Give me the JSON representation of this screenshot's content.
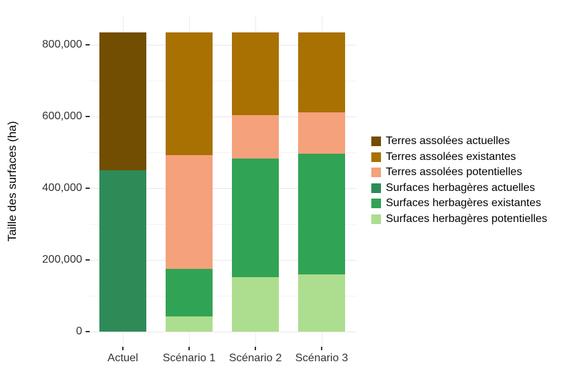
{
  "figure": {
    "background": "#FFFFFF",
    "panel_background": "#FFFFFF",
    "grid_color": "#E8E8E8"
  },
  "chart_data": {
    "type": "bar",
    "stacked": true,
    "title": "",
    "xlabel": "",
    "ylabel": "Taille des surfaces (ha)",
    "categories": [
      "Actuel",
      "Scénario 1",
      "Scénario 2",
      "Scénario 3"
    ],
    "series": [
      {
        "name": "Surfaces herbagères potentielles",
        "color": "#ADDD8E",
        "values": [
          0,
          42000,
          152000,
          160000
        ]
      },
      {
        "name": "Surfaces herbagères existantes",
        "color": "#31A354",
        "values": [
          0,
          134000,
          331000,
          337000
        ]
      },
      {
        "name": "Surfaces herbagères actuelles",
        "color": "#2E8B57",
        "values": [
          451000,
          0,
          0,
          0
        ]
      },
      {
        "name": "Terres assolées potentielles",
        "color": "#F4A17C",
        "values": [
          0,
          317000,
          121000,
          114000
        ]
      },
      {
        "name": "Terres assolées existantes",
        "color": "#A97102",
        "values": [
          0,
          342000,
          231000,
          224000
        ]
      },
      {
        "name": "Terres assolées actuelles",
        "color": "#724E02",
        "values": [
          384000,
          0,
          0,
          0
        ]
      }
    ],
    "stack_total": 835000,
    "legend": {
      "position": "right",
      "entries": [
        {
          "label": "Terres assolées actuelles",
          "color": "#724E02"
        },
        {
          "label": "Terres assolées existantes",
          "color": "#A97102"
        },
        {
          "label": "Terres assolées potentielles",
          "color": "#F4A17C"
        },
        {
          "label": "Surfaces herbagères actuelles",
          "color": "#2E8B57"
        },
        {
          "label": "Surfaces herbagères existantes",
          "color": "#31A354"
        },
        {
          "label": "Surfaces herbagères potentielles",
          "color": "#ADDD8E"
        }
      ]
    },
    "y_axis": {
      "ticks": [
        0,
        200000,
        400000,
        600000,
        800000
      ],
      "tick_labels": [
        "0",
        "200,000",
        "400,000",
        "600,000",
        "800,000"
      ],
      "minor_ticks": [
        100000,
        300000,
        500000,
        700000
      ],
      "ylim": [
        0,
        880000
      ],
      "grid": true
    }
  }
}
